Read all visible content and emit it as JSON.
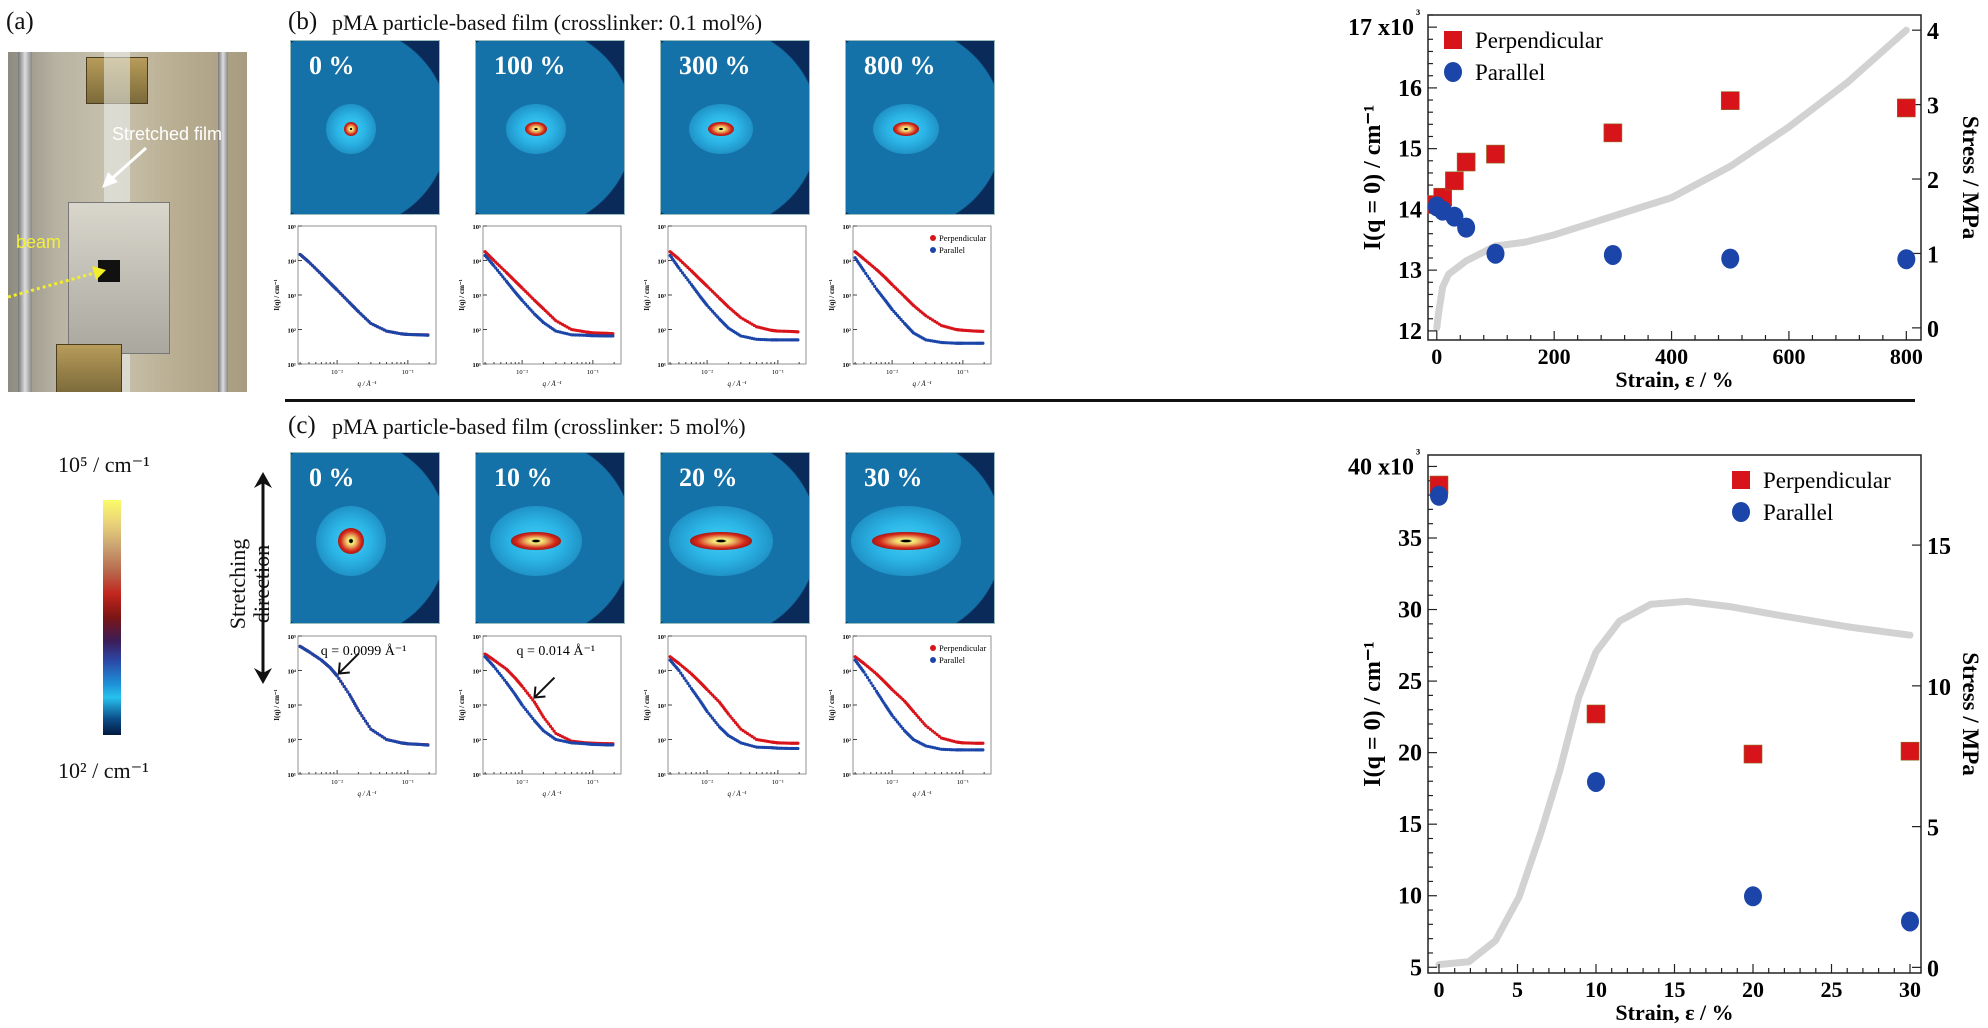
{
  "panel_a": {
    "label": "(a)",
    "stretched_film_label": "Stretched film",
    "beam_label": "beam",
    "colorbar": {
      "max_label": "10⁵ / cm⁻¹",
      "min_label": "10² / cm⁻¹"
    },
    "stretching_direction": {
      "line1": "Stretching",
      "line2": "direction"
    }
  },
  "panel_b": {
    "label": "(b)",
    "title": "pMA particle-based film (crosslinker: 0.1 mol%)",
    "images": [
      {
        "strain_label": "0 %"
      },
      {
        "strain_label": "100 %"
      },
      {
        "strain_label": "300 %"
      },
      {
        "strain_label": "800 %"
      }
    ]
  },
  "panel_c": {
    "label": "(c)",
    "title": "pMA particle-based film (crosslinker: 5 mol%)",
    "images": [
      {
        "strain_label": "0 %"
      },
      {
        "strain_label": "10 %"
      },
      {
        "strain_label": "20 %"
      },
      {
        "strain_label": "30 %"
      }
    ]
  },
  "colors": {
    "perpendicular": "#d8141b",
    "parallel": "#1b45a8",
    "stress": "#d2d2d2"
  },
  "chart_data": [
    {
      "id": "b_summary",
      "type": "scatter",
      "xlabel": "Strain, ε / %",
      "ylabel": "I(q = 0) / cm⁻¹",
      "y_multiplier": "x10³",
      "y2label": "Stress / MPa",
      "xlim": [
        -15,
        825
      ],
      "ylim": [
        11.85,
        17.2
      ],
      "y2lim": [
        -0.163,
        4.204
      ],
      "xticks": [
        0,
        200,
        400,
        600,
        800
      ],
      "yticks": [
        12,
        13,
        14,
        15,
        16,
        17
      ],
      "y2ticks": [
        0,
        1,
        2,
        3,
        4
      ],
      "legend": "top-left",
      "grid": false,
      "series": [
        {
          "name": "Perpendicular",
          "marker": "square",
          "x": [
            0,
            10,
            30,
            50,
            100,
            300,
            500,
            800
          ],
          "y": [
            14.08,
            14.2,
            14.47,
            14.78,
            14.91,
            15.26,
            15.79,
            15.67
          ]
        },
        {
          "name": "Parallel",
          "marker": "circle",
          "x": [
            0,
            10,
            30,
            50,
            100,
            300,
            500,
            800
          ],
          "y": [
            14.05,
            13.98,
            13.88,
            13.7,
            13.27,
            13.25,
            13.19,
            13.18
          ]
        }
      ],
      "stress_curve": {
        "axis": "y2",
        "x": [
          0,
          3,
          10,
          20,
          50,
          100,
          150,
          200,
          300,
          400,
          500,
          600,
          700,
          800
        ],
        "y": [
          0,
          0.2,
          0.55,
          0.72,
          0.9,
          1.1,
          1.15,
          1.25,
          1.5,
          1.75,
          2.17,
          2.7,
          3.3,
          4.0
        ]
      }
    },
    {
      "id": "c_summary",
      "type": "scatter",
      "xlabel": "Strain, ε / %",
      "ylabel": "I(q = 0) / cm⁻¹",
      "y_multiplier": "x10³",
      "y2label": "Stress / MPa",
      "xlim": [
        -0.7,
        30.7
      ],
      "ylim": [
        4.6,
        40.8
      ],
      "y2lim": [
        -0.2,
        18.2
      ],
      "xticks": [
        0,
        5,
        10,
        15,
        20,
        25,
        30
      ],
      "yticks": [
        5,
        10,
        15,
        20,
        25,
        30,
        35,
        40
      ],
      "y2ticks": [
        0,
        5,
        10,
        15
      ],
      "legend": "top-right",
      "grid": false,
      "series": [
        {
          "name": "Perpendicular",
          "marker": "square",
          "x": [
            0,
            10,
            20,
            30
          ],
          "y": [
            38.7,
            22.7,
            19.9,
            20.1
          ]
        },
        {
          "name": "Parallel",
          "marker": "circle",
          "x": [
            0,
            10,
            20,
            30
          ],
          "y": [
            37.95,
            17.95,
            9.96,
            8.2
          ]
        }
      ],
      "stress_curve": {
        "axis": "y2",
        "x": [
          0,
          1.9,
          3.6,
          5.1,
          6.5,
          7.7,
          8.9,
          10,
          11.5,
          13.5,
          15.8,
          18.7,
          21.7,
          26,
          30
        ],
        "y": [
          0.1,
          0.2,
          0.95,
          2.5,
          4.8,
          7.0,
          9.6,
          11.2,
          12.3,
          12.9,
          13.0,
          12.8,
          12.5,
          12.1,
          11.8
        ]
      }
    },
    {
      "id": "b_0",
      "type": "scatter",
      "xscale": "log",
      "yscale": "log",
      "xlabel": "q / Å⁻¹",
      "ylabel": "I(q) / cm⁻¹",
      "xlim": [
        0.0028,
        0.25
      ],
      "ylim": [
        10,
        100000
      ],
      "yticks": [
        10,
        100,
        1000,
        10000,
        100000
      ],
      "ytick_labels": [
        "10¹",
        "10²",
        "10³",
        "10⁴",
        "10⁵"
      ],
      "xticks": [
        0.01,
        0.1
      ],
      "xtick_labels": [
        "10⁻²",
        "10⁻¹"
      ],
      "q": [
        0.003,
        0.004,
        0.006,
        0.008,
        0.01,
        0.015,
        0.02,
        0.03,
        0.05,
        0.08,
        0.1,
        0.15,
        0.2
      ],
      "series": [
        {
          "name": "Perpendicular",
          "y": [
            15000,
            9000,
            4000,
            2200,
            1400,
            600,
            330,
            150,
            90,
            75,
            72,
            70,
            70
          ]
        },
        {
          "name": "Parallel",
          "y": [
            15000,
            9000,
            4000,
            2200,
            1400,
            600,
            330,
            150,
            90,
            75,
            72,
            70,
            68
          ]
        }
      ]
    },
    {
      "id": "b_100",
      "type": "scatter",
      "xscale": "log",
      "yscale": "log",
      "xlabel": "q / Å⁻¹",
      "ylabel": "I(q) / cm⁻¹",
      "xlim": [
        0.0028,
        0.25
      ],
      "ylim": [
        10,
        100000
      ],
      "yticks": [
        10,
        100,
        1000,
        10000,
        100000
      ],
      "ytick_labels": [
        "10¹",
        "10²",
        "10³",
        "10⁴",
        "10⁵"
      ],
      "xticks": [
        0.01,
        0.1
      ],
      "xtick_labels": [
        "10⁻²",
        "10⁻¹"
      ],
      "q": [
        0.003,
        0.004,
        0.006,
        0.008,
        0.01,
        0.015,
        0.02,
        0.03,
        0.05,
        0.08,
        0.1,
        0.15,
        0.2
      ],
      "series": [
        {
          "name": "Perpendicular",
          "y": [
            18000,
            10000,
            4500,
            2500,
            1600,
            700,
            400,
            180,
            100,
            85,
            80,
            78,
            75
          ]
        },
        {
          "name": "Parallel",
          "y": [
            14000,
            7000,
            2500,
            1200,
            700,
            280,
            160,
            90,
            70,
            68,
            66,
            65,
            65
          ]
        }
      ]
    },
    {
      "id": "b_300",
      "type": "scatter",
      "xscale": "log",
      "yscale": "log",
      "xlabel": "q / Å⁻¹",
      "ylabel": "I(q) / cm⁻¹",
      "xlim": [
        0.0028,
        0.25
      ],
      "ylim": [
        10,
        100000
      ],
      "yticks": [
        10,
        100,
        1000,
        10000,
        100000
      ],
      "ytick_labels": [
        "10¹",
        "10²",
        "10³",
        "10⁴",
        "10⁵"
      ],
      "xticks": [
        0.01,
        0.1
      ],
      "xtick_labels": [
        "10⁻²",
        "10⁻¹"
      ],
      "q": [
        0.003,
        0.004,
        0.006,
        0.008,
        0.01,
        0.015,
        0.02,
        0.03,
        0.05,
        0.08,
        0.1,
        0.15,
        0.2
      ],
      "series": [
        {
          "name": "Perpendicular",
          "y": [
            18000,
            11000,
            5000,
            2800,
            1800,
            800,
            450,
            220,
            120,
            95,
            90,
            88,
            85
          ]
        },
        {
          "name": "Parallel",
          "y": [
            14000,
            6000,
            2000,
            900,
            500,
            200,
            110,
            65,
            52,
            50,
            50,
            50,
            50
          ]
        }
      ]
    },
    {
      "id": "b_800",
      "type": "scatter",
      "xscale": "log",
      "yscale": "log",
      "xlabel": "q / Å⁻¹",
      "ylabel": "I(q) / cm⁻¹",
      "xlim": [
        0.0028,
        0.25
      ],
      "ylim": [
        10,
        100000
      ],
      "yticks": [
        10,
        100,
        1000,
        10000,
        100000
      ],
      "ytick_labels": [
        "10¹",
        "10²",
        "10³",
        "10⁴",
        "10⁵"
      ],
      "xticks": [
        0.01,
        0.1
      ],
      "xtick_labels": [
        "10⁻²",
        "10⁻¹"
      ],
      "legend": "top-right",
      "q": [
        0.003,
        0.004,
        0.006,
        0.008,
        0.01,
        0.015,
        0.02,
        0.03,
        0.05,
        0.08,
        0.1,
        0.15,
        0.2
      ],
      "series": [
        {
          "name": "Perpendicular",
          "y": [
            18000,
            11000,
            5500,
            3200,
            2000,
            900,
            500,
            250,
            130,
            100,
            95,
            90,
            88
          ]
        },
        {
          "name": "Parallel",
          "y": [
            12000,
            5000,
            1500,
            700,
            380,
            150,
            80,
            50,
            42,
            40,
            40,
            40,
            40
          ]
        }
      ]
    },
    {
      "id": "c_0",
      "type": "scatter",
      "xscale": "log",
      "yscale": "log",
      "xlabel": "q / Å⁻¹",
      "ylabel": "I(q) / cm⁻¹",
      "xlim": [
        0.0028,
        0.25
      ],
      "ylim": [
        10,
        100000
      ],
      "yticks": [
        10,
        100,
        1000,
        10000,
        100000
      ],
      "ytick_labels": [
        "10¹",
        "10²",
        "10³",
        "10⁴",
        "10⁵"
      ],
      "xticks": [
        0.01,
        0.1
      ],
      "xtick_labels": [
        "10⁻²",
        "10⁻¹"
      ],
      "annotation": {
        "text": "q = 0.0099 Å⁻¹",
        "q": 0.0099
      },
      "q": [
        0.003,
        0.004,
        0.006,
        0.008,
        0.01,
        0.015,
        0.02,
        0.03,
        0.05,
        0.08,
        0.1,
        0.15,
        0.2
      ],
      "series": [
        {
          "name": "Perpendicular",
          "y": [
            50000,
            35000,
            20000,
            12000,
            7000,
            2000,
            700,
            200,
            100,
            80,
            75,
            72,
            70
          ]
        },
        {
          "name": "Parallel",
          "y": [
            50000,
            35000,
            20000,
            12000,
            7000,
            2000,
            700,
            200,
            100,
            80,
            75,
            72,
            68
          ]
        }
      ]
    },
    {
      "id": "c_10",
      "type": "scatter",
      "xscale": "log",
      "yscale": "log",
      "xlabel": "q / Å⁻¹",
      "ylabel": "I(q) / cm⁻¹",
      "xlim": [
        0.0028,
        0.25
      ],
      "ylim": [
        10,
        100000
      ],
      "yticks": [
        10,
        100,
        1000,
        10000,
        100000
      ],
      "ytick_labels": [
        "10¹",
        "10²",
        "10³",
        "10⁴",
        "10⁵"
      ],
      "xticks": [
        0.01,
        0.1
      ],
      "xtick_labels": [
        "10⁻²",
        "10⁻¹"
      ],
      "annotation": {
        "text": "q = 0.014 Å⁻¹",
        "q": 0.014
      },
      "q": [
        0.003,
        0.004,
        0.006,
        0.008,
        0.01,
        0.015,
        0.02,
        0.03,
        0.05,
        0.08,
        0.1,
        0.15,
        0.2
      ],
      "series": [
        {
          "name": "Perpendicular",
          "y": [
            30000,
            20000,
            11000,
            6000,
            3500,
            1200,
            450,
            150,
            90,
            80,
            78,
            76,
            75
          ]
        },
        {
          "name": "Parallel",
          "y": [
            25000,
            13000,
            4500,
            2000,
            1000,
            350,
            180,
            100,
            80,
            75,
            72,
            70,
            70
          ]
        }
      ]
    },
    {
      "id": "c_20",
      "type": "scatter",
      "xscale": "log",
      "yscale": "log",
      "xlabel": "q / Å⁻¹",
      "ylabel": "I(q) / cm⁻¹",
      "xlim": [
        0.0028,
        0.25
      ],
      "ylim": [
        10,
        100000
      ],
      "yticks": [
        10,
        100,
        1000,
        10000,
        100000
      ],
      "ytick_labels": [
        "10¹",
        "10²",
        "10³",
        "10⁴",
        "10⁵"
      ],
      "xticks": [
        0.01,
        0.1
      ],
      "xtick_labels": [
        "10⁻²",
        "10⁻¹"
      ],
      "q": [
        0.003,
        0.004,
        0.006,
        0.008,
        0.01,
        0.015,
        0.02,
        0.03,
        0.05,
        0.08,
        0.1,
        0.15,
        0.2
      ],
      "series": [
        {
          "name": "Perpendicular",
          "y": [
            25000,
            16000,
            8000,
            4500,
            2800,
            1200,
            550,
            200,
            100,
            85,
            80,
            78,
            78
          ]
        },
        {
          "name": "Parallel",
          "y": [
            20000,
            10000,
            3000,
            1300,
            650,
            230,
            130,
            80,
            60,
            58,
            56,
            55,
            55
          ]
        }
      ]
    },
    {
      "id": "c_30",
      "type": "scatter",
      "xscale": "log",
      "yscale": "log",
      "xlabel": "q / Å⁻¹",
      "ylabel": "I(q) / cm⁻¹",
      "xlim": [
        0.0028,
        0.25
      ],
      "ylim": [
        10,
        100000
      ],
      "yticks": [
        10,
        100,
        1000,
        10000,
        100000
      ],
      "ytick_labels": [
        "10¹",
        "10²",
        "10³",
        "10⁴",
        "10⁵"
      ],
      "xticks": [
        0.01,
        0.1
      ],
      "xtick_labels": [
        "10⁻²",
        "10⁻¹"
      ],
      "legend": "top-right",
      "q": [
        0.003,
        0.004,
        0.006,
        0.008,
        0.01,
        0.015,
        0.02,
        0.03,
        0.05,
        0.08,
        0.1,
        0.15,
        0.2
      ],
      "series": [
        {
          "name": "Perpendicular",
          "y": [
            25000,
            16000,
            8000,
            4500,
            2800,
            1300,
            650,
            250,
            110,
            85,
            80,
            78,
            78
          ]
        },
        {
          "name": "Parallel",
          "y": [
            20000,
            9000,
            2500,
            1000,
            500,
            180,
            100,
            65,
            52,
            50,
            50,
            50,
            50
          ]
        }
      ]
    }
  ]
}
